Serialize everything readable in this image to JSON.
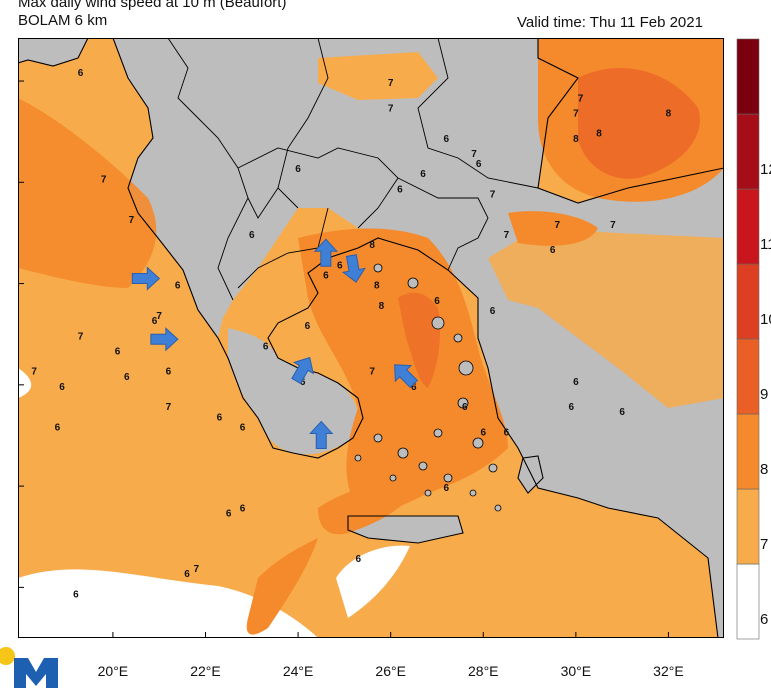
{
  "header": {
    "title": "Max daily wind speed at 10 m (Beaufort)",
    "model": "BOLAM 6 km",
    "valid_time": "Valid time: Thu 11 Feb 2021"
  },
  "colorbar": {
    "levels": [
      {
        "label": "6",
        "color": "#ffffff"
      },
      {
        "label": "7",
        "color": "#f8ab4a"
      },
      {
        "label": "8",
        "color": "#f48a2c"
      },
      {
        "label": "9",
        "color": "#ea5f25"
      },
      {
        "label": "10",
        "color": "#dc3f22"
      },
      {
        "label": "11",
        "color": "#c8161c"
      },
      {
        "label": "12",
        "color": "#a50e18"
      },
      {
        "label": "",
        "color": "#7a0010"
      }
    ]
  },
  "x_axis": {
    "ticks": [
      "20°E",
      "22°E",
      "24°E",
      "26°E",
      "28°E",
      "30°E",
      "32°E"
    ]
  },
  "map_labels": [
    {
      "text": "6",
      "lon": 19.3,
      "lat": 44.1
    },
    {
      "text": "7",
      "lon": 26.0,
      "lat": 43.9
    },
    {
      "text": "7",
      "lon": 30.1,
      "lat": 43.6
    },
    {
      "text": "8",
      "lon": 32.0,
      "lat": 43.3
    },
    {
      "text": "7",
      "lon": 30.0,
      "lat": 43.3
    },
    {
      "text": "7",
      "lon": 26.0,
      "lat": 43.4
    },
    {
      "text": "8",
      "lon": 30.5,
      "lat": 42.9
    },
    {
      "text": "8",
      "lon": 30.0,
      "lat": 42.8
    },
    {
      "text": "6",
      "lon": 27.2,
      "lat": 42.8
    },
    {
      "text": "7",
      "lon": 27.8,
      "lat": 42.5
    },
    {
      "text": "6",
      "lon": 27.9,
      "lat": 42.3
    },
    {
      "text": "6",
      "lon": 26.7,
      "lat": 42.1
    },
    {
      "text": "7",
      "lon": 19.8,
      "lat": 42.0
    },
    {
      "text": "6",
      "lon": 24.0,
      "lat": 42.2
    },
    {
      "text": "6",
      "lon": 26.2,
      "lat": 41.8
    },
    {
      "text": "7",
      "lon": 28.2,
      "lat": 41.7
    },
    {
      "text": "7",
      "lon": 20.4,
      "lat": 41.2
    },
    {
      "text": "7",
      "lon": 29.6,
      "lat": 41.1
    },
    {
      "text": "7",
      "lon": 30.8,
      "lat": 41.1
    },
    {
      "text": "6",
      "lon": 23.0,
      "lat": 40.9
    },
    {
      "text": "8",
      "lon": 25.6,
      "lat": 40.7
    },
    {
      "text": "7",
      "lon": 28.5,
      "lat": 40.9
    },
    {
      "text": "6",
      "lon": 29.5,
      "lat": 40.6
    },
    {
      "text": "6",
      "lon": 24.9,
      "lat": 40.3
    },
    {
      "text": "6",
      "lon": 24.6,
      "lat": 40.1
    },
    {
      "text": "8",
      "lon": 25.7,
      "lat": 39.9
    },
    {
      "text": "6",
      "lon": 21.4,
      "lat": 39.9
    },
    {
      "text": "6",
      "lon": 27.0,
      "lat": 39.6
    },
    {
      "text": "8",
      "lon": 25.8,
      "lat": 39.5
    },
    {
      "text": "6",
      "lon": 28.2,
      "lat": 39.4
    },
    {
      "text": "7",
      "lon": 21.0,
      "lat": 39.3
    },
    {
      "text": "6",
      "lon": 20.9,
      "lat": 39.2
    },
    {
      "text": "6",
      "lon": 24.2,
      "lat": 39.1
    },
    {
      "text": "7",
      "lon": 19.3,
      "lat": 38.9
    },
    {
      "text": "6",
      "lon": 20.1,
      "lat": 38.6
    },
    {
      "text": "6",
      "lon": 23.3,
      "lat": 38.7
    },
    {
      "text": "7",
      "lon": 18.3,
      "lat": 38.2
    },
    {
      "text": "6",
      "lon": 21.2,
      "lat": 38.2
    },
    {
      "text": "7",
      "lon": 25.6,
      "lat": 38.2
    },
    {
      "text": "6",
      "lon": 26.5,
      "lat": 37.9
    },
    {
      "text": "6",
      "lon": 30.0,
      "lat": 38.0
    },
    {
      "text": "6",
      "lon": 24.1,
      "lat": 38.0
    },
    {
      "text": "6",
      "lon": 20.3,
      "lat": 38.1
    },
    {
      "text": "6",
      "lon": 18.9,
      "lat": 37.9
    },
    {
      "text": "7",
      "lon": 21.2,
      "lat": 37.5
    },
    {
      "text": "6",
      "lon": 27.6,
      "lat": 37.5
    },
    {
      "text": "6",
      "lon": 29.9,
      "lat": 37.5
    },
    {
      "text": "6",
      "lon": 18.8,
      "lat": 37.1
    },
    {
      "text": "6",
      "lon": 22.3,
      "lat": 37.3
    },
    {
      "text": "6",
      "lon": 22.8,
      "lat": 37.1
    },
    {
      "text": "6",
      "lon": 24.5,
      "lat": 37.1
    },
    {
      "text": "6",
      "lon": 28.5,
      "lat": 37.0
    },
    {
      "text": "6",
      "lon": 31.0,
      "lat": 37.4
    },
    {
      "text": "6",
      "lon": 28.0,
      "lat": 37.0
    },
    {
      "text": "6",
      "lon": 22.8,
      "lat": 35.5
    },
    {
      "text": "6",
      "lon": 22.5,
      "lat": 35.4
    },
    {
      "text": "6",
      "lon": 27.2,
      "lat": 35.9
    },
    {
      "text": "6",
      "lon": 25.3,
      "lat": 34.5
    },
    {
      "text": "7",
      "lon": 21.8,
      "lat": 34.3
    },
    {
      "text": "6",
      "lon": 21.6,
      "lat": 34.2
    },
    {
      "text": "6",
      "lon": 19.2,
      "lat": 33.8
    }
  ],
  "arrows": [
    {
      "lon": 20.7,
      "lat": 40.1,
      "angle": 0
    },
    {
      "lon": 21.1,
      "lat": 38.9,
      "angle": 0
    },
    {
      "lon": 24.6,
      "lat": 40.6,
      "angle": -90
    },
    {
      "lon": 25.2,
      "lat": 40.3,
      "angle": 80
    },
    {
      "lon": 24.1,
      "lat": 38.3,
      "angle": -60
    },
    {
      "lon": 26.3,
      "lat": 38.2,
      "angle": -135
    },
    {
      "lon": 24.5,
      "lat": 37.0,
      "angle": -90
    }
  ]
}
